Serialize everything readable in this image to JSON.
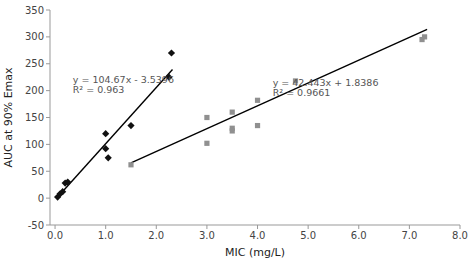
{
  "chart_data": {
    "type": "scatter",
    "xlabel": "MIC (mg/L)",
    "ylabel": "AUC at 90% Emax",
    "xlim": [
      -0.1,
      8.0
    ],
    "ylim": [
      -50,
      350
    ],
    "xticks": [
      {
        "value": 0.0,
        "label": "0.0"
      },
      {
        "value": 1.0,
        "label": "1.0"
      },
      {
        "value": 2.0,
        "label": "2.0"
      },
      {
        "value": 3.0,
        "label": "3.0"
      },
      {
        "value": 4.0,
        "label": "4.0"
      },
      {
        "value": 5.0,
        "label": "5.0"
      },
      {
        "value": 6.0,
        "label": "6.0"
      },
      {
        "value": 7.0,
        "label": "7.0"
      },
      {
        "value": 8.0,
        "label": "8.0"
      }
    ],
    "yticks": [
      -50,
      0,
      50,
      100,
      150,
      200,
      250,
      300,
      350
    ],
    "series": [
      {
        "type": "scatter",
        "marker": "diamond",
        "color": "#111111",
        "x": [
          0.05,
          0.1,
          0.15,
          0.2,
          0.25,
          1.0,
          1.0,
          1.05,
          1.5,
          2.25,
          2.3
        ],
        "values": [
          2,
          8,
          12,
          28,
          30,
          120,
          92,
          75,
          135,
          225,
          270
        ]
      },
      {
        "type": "scatter",
        "marker": "square",
        "color": "#909090",
        "x": [
          1.5,
          3.0,
          3.0,
          3.5,
          3.5,
          3.5,
          4.0,
          4.0,
          4.75,
          7.25,
          7.3
        ],
        "values": [
          62,
          150,
          102,
          160,
          130,
          125,
          182,
          135,
          218,
          295,
          300
        ]
      },
      {
        "type": "line",
        "line_style": "solid",
        "color": "#000000",
        "x": [
          0.03,
          2.32
        ],
        "values": [
          -0.3995,
          239.2948
        ]
      },
      {
        "type": "line",
        "line_style": "solid",
        "color": "#000000",
        "x": [
          1.5,
          7.35
        ],
        "values": [
          65.5031,
          313.79465
        ]
      }
    ],
    "annotations": [
      {
        "text": "y = 104.67x - 3.5396",
        "x": 0.35,
        "y": 210
      },
      {
        "text": "R² = 0.963",
        "x": 0.35,
        "y": 192
      },
      {
        "text": "y = 42.443x + 1.8386",
        "x": 4.3,
        "y": 205
      },
      {
        "text": "R² = 0.9661",
        "x": 4.3,
        "y": 187
      }
    ]
  }
}
